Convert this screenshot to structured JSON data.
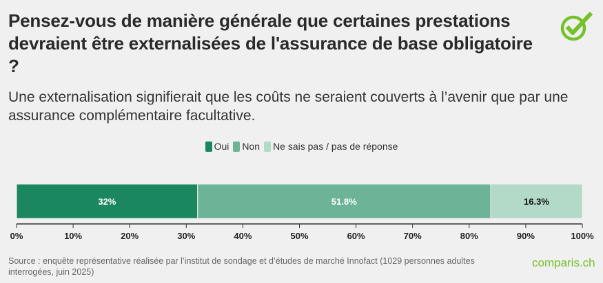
{
  "title": "Pensez-vous de manière générale que certaines prestations devraient être externalisées de l'assurance de base obligatoire ?",
  "subtitle": "Une externalisation signifierait que les coûts ne seraient couverts à l’avenir que par une assurance complémentaire facultative.",
  "source": "Source : enquête représentative réalisée par l’institut de sondage et d’études de marché Innofact (1029 personnes adultes interrogées, juin 2025)",
  "brand": "comparis.ch",
  "logo_icon": "checkmark-circle-icon",
  "colors": {
    "accent": "#76c02a",
    "background": "#f0f0f0"
  },
  "chart_data": {
    "type": "bar",
    "orientation": "horizontal-stacked",
    "xlim": [
      0,
      100
    ],
    "ticks": [
      "0%",
      "10%",
      "20%",
      "30%",
      "40%",
      "50%",
      "60%",
      "70%",
      "80%",
      "90%",
      "100%"
    ],
    "tick_values": [
      0,
      10,
      20,
      30,
      40,
      50,
      60,
      70,
      80,
      90,
      100
    ],
    "legend_placement": "top",
    "grid": false,
    "series": [
      {
        "name": "Oui",
        "value": 32,
        "label": "32%",
        "color": "#1a8760",
        "label_color": "#ffffff"
      },
      {
        "name": "Non",
        "value": 51.8,
        "label": "51.8%",
        "color": "#6cb398",
        "label_color": "#ffffff"
      },
      {
        "name": "Ne sais pas / pas de réponse",
        "value": 16.3,
        "label": "16.3%",
        "color": "#b3d9c9",
        "label_color": "#111111"
      }
    ]
  }
}
